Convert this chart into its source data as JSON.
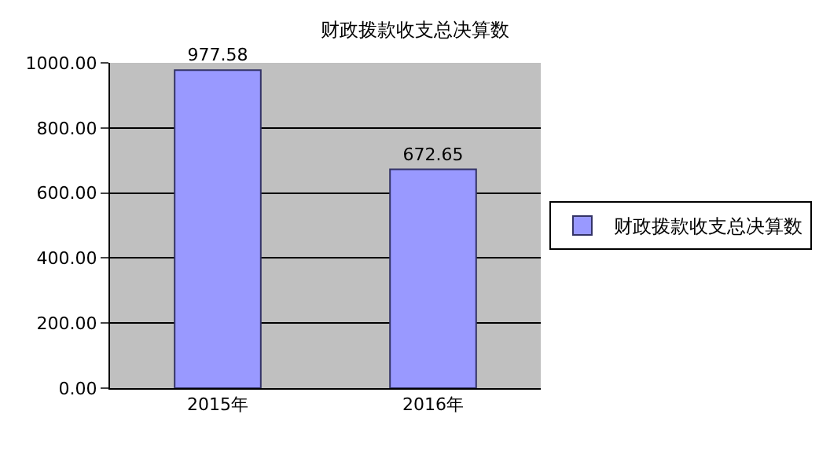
{
  "chart_data": {
    "type": "bar",
    "title": "财政拨款收支总决算数",
    "categories": [
      "2015年",
      "2016年"
    ],
    "series": [
      {
        "name": "财政拨款收支总决算数",
        "color": "#9999ff",
        "values": [
          977.58,
          672.65
        ]
      }
    ],
    "ylim": [
      0,
      1000
    ],
    "yticks": [
      {
        "value": 0,
        "label": "0.00"
      },
      {
        "value": 200,
        "label": "200.00"
      },
      {
        "value": 400,
        "label": "400.00"
      },
      {
        "value": 600,
        "label": "600.00"
      },
      {
        "value": 800,
        "label": "800.00"
      },
      {
        "value": 1000,
        "label": "1000.00"
      }
    ],
    "grid": true,
    "legend": "right",
    "data_labels": true
  }
}
